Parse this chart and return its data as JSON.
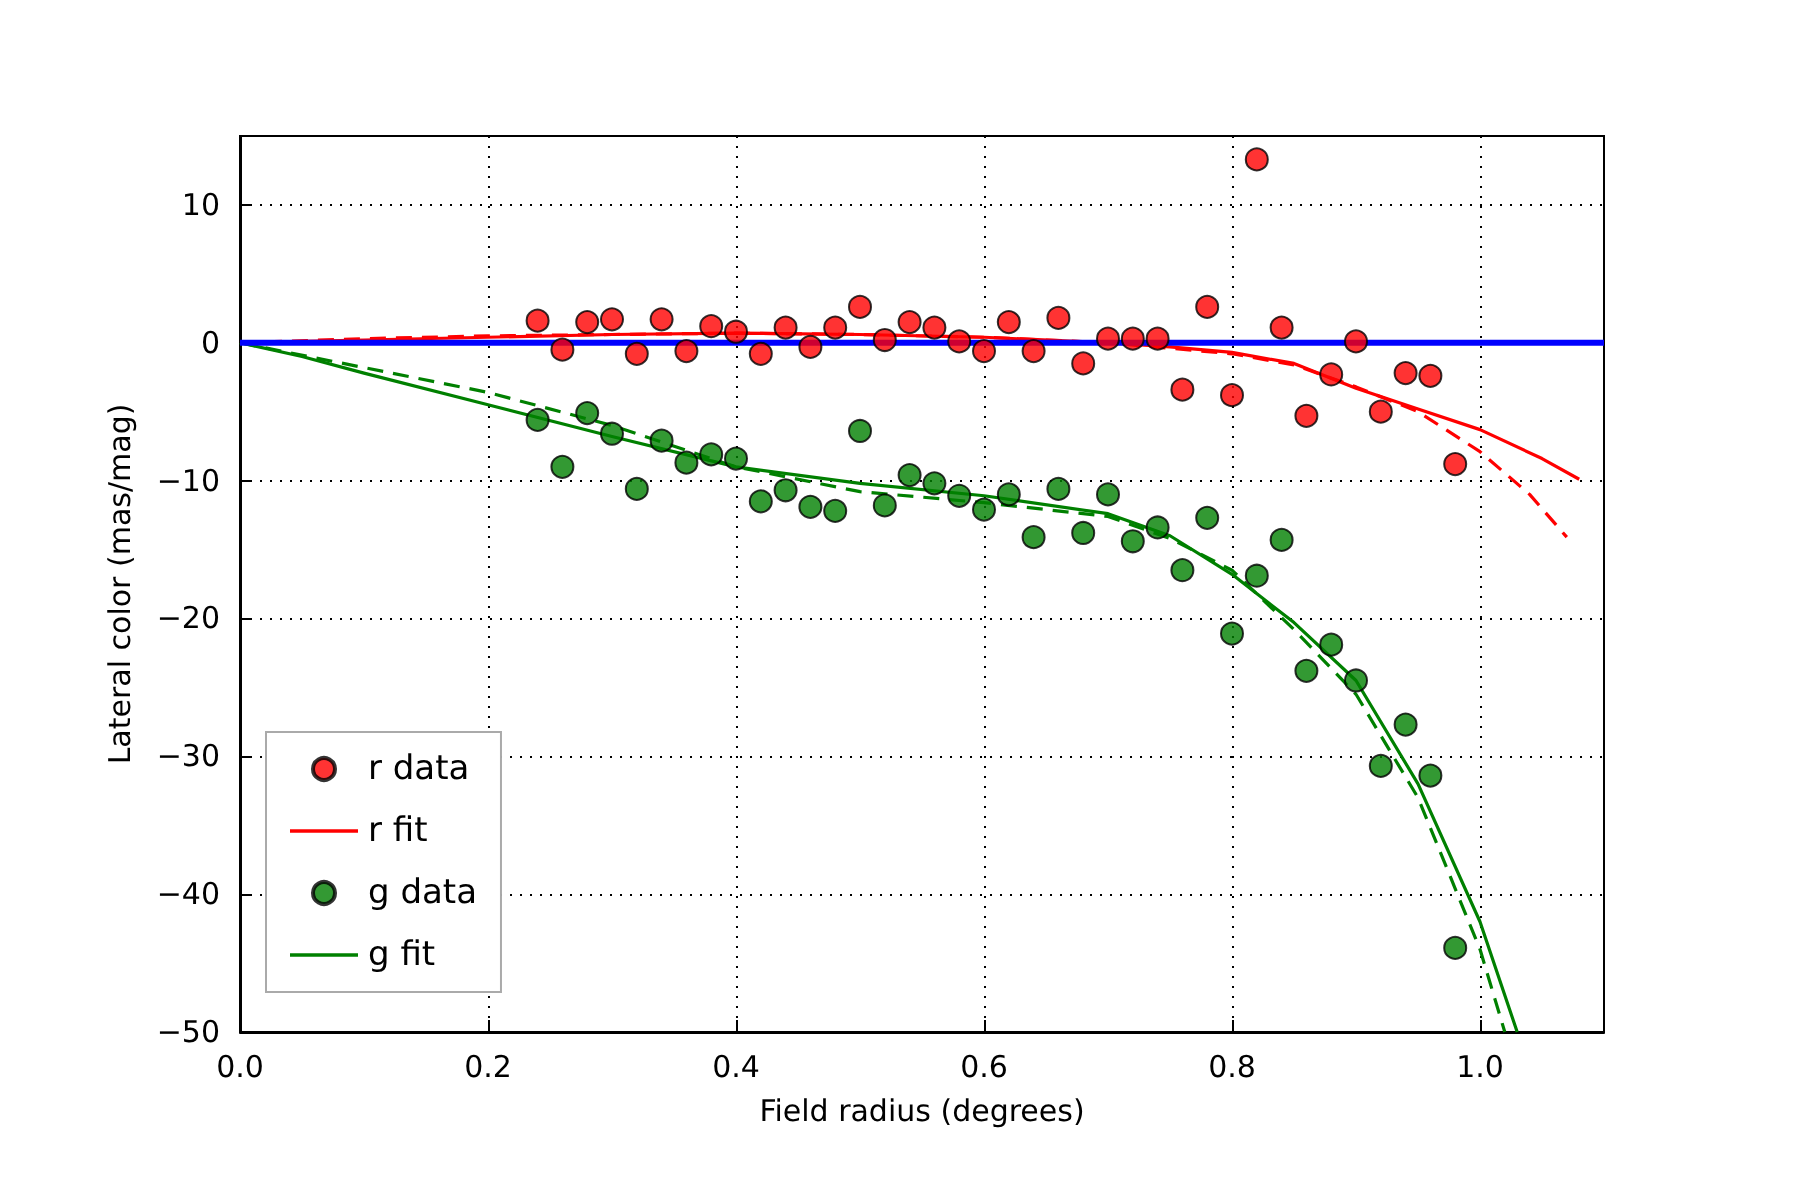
{
  "chart_data": {
    "type": "scatter",
    "xlabel": "Field radius (degrees)",
    "ylabel": "Lateral color (mas/mag)",
    "xlim": [
      0,
      1.1
    ],
    "ylim": [
      -50,
      15
    ],
    "xticks": [
      {
        "value": 0,
        "label": "0.0"
      },
      {
        "value": 0.2,
        "label": "0.2"
      },
      {
        "value": 0.4,
        "label": "0.4"
      },
      {
        "value": 0.6,
        "label": "0.6"
      },
      {
        "value": 0.8,
        "label": "0.8"
      },
      {
        "value": 1,
        "label": "1.0"
      }
    ],
    "yticks": [
      {
        "value": -50,
        "label": "−50"
      },
      {
        "value": -40,
        "label": "−40"
      },
      {
        "value": -30,
        "label": "−30"
      },
      {
        "value": -20,
        "label": "−20"
      },
      {
        "value": -10,
        "label": "−10"
      },
      0,
      10
    ],
    "grid": true,
    "legend": "bottom left",
    "ref_lines": [
      {
        "axis": "y",
        "value": 0,
        "color": "#0000ff"
      }
    ],
    "series": [
      {
        "name": "r data",
        "marker": "circle",
        "color": "#ff0000",
        "x": [
          0.24,
          0.26,
          0.28,
          0.3,
          0.32,
          0.34,
          0.36,
          0.38,
          0.4,
          0.42,
          0.44,
          0.46,
          0.48,
          0.5,
          0.52,
          0.54,
          0.56,
          0.58,
          0.6,
          0.62,
          0.64,
          0.66,
          0.68,
          0.7,
          0.72,
          0.74,
          0.76,
          0.78,
          0.8,
          0.82,
          0.84,
          0.86,
          0.88,
          0.9,
          0.92,
          0.94,
          0.96,
          0.98
        ],
        "values": [
          1.6,
          -0.5,
          1.5,
          1.7,
          -0.8,
          1.7,
          -0.6,
          1.2,
          0.8,
          -0.8,
          1.1,
          -0.3,
          1.1,
          2.6,
          0.2,
          1.5,
          1.1,
          0.1,
          -0.6,
          1.5,
          -0.6,
          1.8,
          -1.5,
          0.3,
          0.3,
          0.3,
          -3.4,
          2.6,
          -3.8,
          13.3,
          1.1,
          -5.3,
          -2.3,
          0.1,
          -5.0,
          -2.2,
          -2.4,
          -8.8
        ]
      },
      {
        "name": "r fit",
        "type": "line",
        "marker": "none",
        "line_style": "solid",
        "color": "#ff0000",
        "x": [
          0,
          0.1,
          0.2,
          0.3,
          0.4,
          0.5,
          0.6,
          0.7,
          0.75,
          0.8,
          0.85,
          0.9,
          0.95,
          1.0,
          1.05,
          1.08
        ],
        "values": [
          0,
          0.2,
          0.4,
          0.6,
          0.7,
          0.6,
          0.4,
          0,
          -0.3,
          -0.7,
          -1.5,
          -3.3,
          -4.8,
          -6.3,
          -8.4,
          -9.9
        ]
      },
      {
        "type": "line",
        "marker": "none",
        "line_style": "dashed",
        "color": "#ff0000",
        "x": [
          0,
          0.1,
          0.2,
          0.3,
          0.4,
          0.5,
          0.6,
          0.7,
          0.75,
          0.8,
          0.85,
          0.9,
          0.95,
          1.0,
          1.04,
          1.07
        ],
        "values": [
          0,
          0.3,
          0.5,
          0.6,
          0.7,
          0.6,
          0.4,
          0,
          -0.4,
          -0.8,
          -1.6,
          -3.2,
          -5.0,
          -7.9,
          -11,
          -14.1
        ]
      },
      {
        "name": "g data",
        "marker": "circle",
        "color": "#008000",
        "x": [
          0.24,
          0.26,
          0.28,
          0.3,
          0.32,
          0.34,
          0.36,
          0.38,
          0.4,
          0.42,
          0.44,
          0.46,
          0.48,
          0.5,
          0.52,
          0.54,
          0.56,
          0.58,
          0.6,
          0.62,
          0.64,
          0.66,
          0.68,
          0.7,
          0.72,
          0.74,
          0.76,
          0.78,
          0.8,
          0.82,
          0.84,
          0.86,
          0.88,
          0.9,
          0.92,
          0.94,
          0.96,
          0.98
        ],
        "values": [
          -5.6,
          -9.0,
          -5.1,
          -6.6,
          -10.6,
          -7.1,
          -8.7,
          -8.1,
          -8.4,
          -11.5,
          -10.7,
          -11.9,
          -12.2,
          -6.4,
          -11.8,
          -9.6,
          -10.2,
          -11.1,
          -12.1,
          -11.0,
          -14.1,
          -10.6,
          -13.8,
          -11.0,
          -14.4,
          -13.4,
          -16.5,
          -12.7,
          -21.1,
          -16.9,
          -14.3,
          -23.8,
          -21.9,
          -24.5,
          -30.7,
          -27.7,
          -31.4,
          -43.9
        ]
      },
      {
        "name": "g fit",
        "type": "line",
        "marker": "none",
        "line_style": "solid",
        "color": "#008000",
        "x": [
          0,
          0.05,
          0.1,
          0.2,
          0.3,
          0.4,
          0.5,
          0.6,
          0.7,
          0.75,
          0.8,
          0.85,
          0.9,
          0.95,
          1.0,
          1.03
        ],
        "values": [
          0,
          -1.0,
          -2.2,
          -4.5,
          -6.8,
          -9.0,
          -10.2,
          -11.1,
          -12.4,
          -14.0,
          -16.8,
          -20.3,
          -24.5,
          -32,
          -42,
          -50
        ]
      },
      {
        "type": "line",
        "marker": "none",
        "line_style": "dashed",
        "color": "#008000",
        "x": [
          0,
          0.1,
          0.2,
          0.3,
          0.4,
          0.5,
          0.6,
          0.7,
          0.75,
          0.8,
          0.85,
          0.9,
          0.95,
          1.0,
          1.02
        ],
        "values": [
          0,
          -1.8,
          -3.6,
          -6.0,
          -9.0,
          -10.8,
          -11.6,
          -12.6,
          -14.2,
          -16.5,
          -20.8,
          -25.5,
          -33,
          -44,
          -50
        ]
      }
    ]
  }
}
